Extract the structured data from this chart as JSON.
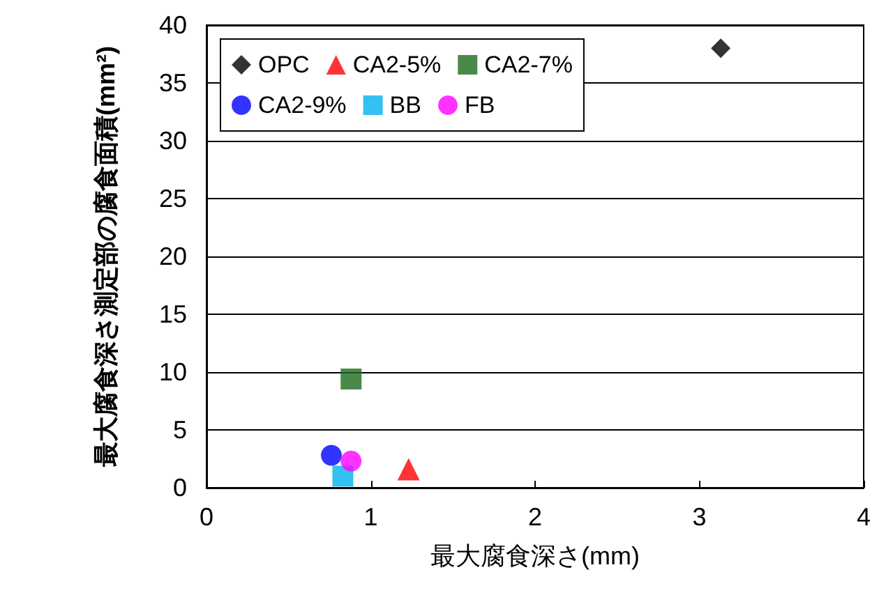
{
  "chart_data": {
    "type": "scatter",
    "xlabel": "最大腐食深さ(mm)",
    "ylabel": "最大腐食深さ測定部の腐食面積(mm²)",
    "series": [
      {
        "name": "OPC",
        "color": "#000000",
        "marker": "diamond",
        "x": [
          3.13
        ],
        "values": [
          38
        ]
      },
      {
        "name": "CA2-5%",
        "color": "#ff0000",
        "marker": "triangle",
        "x": [
          1.23
        ],
        "values": [
          1.6
        ]
      },
      {
        "name": "CA2-7%",
        "color": "#1e6b1e",
        "marker": "square",
        "x": [
          0.88
        ],
        "values": [
          9.4
        ]
      },
      {
        "name": "CA2-9%",
        "color": "#0000ff",
        "marker": "circle",
        "x": [
          0.76
        ],
        "values": [
          2.8
        ]
      },
      {
        "name": "BB",
        "color": "#00b0f0",
        "marker": "square",
        "x": [
          0.83
        ],
        "values": [
          1.0
        ]
      },
      {
        "name": "FB",
        "color": "#ff00ff",
        "marker": "circle",
        "x": [
          0.88
        ],
        "values": [
          2.3
        ]
      }
    ],
    "xlim": [
      0,
      4
    ],
    "xticks": [
      0,
      1,
      2,
      3,
      4
    ],
    "ylim": [
      0,
      40
    ],
    "yticks": [
      0,
      5,
      10,
      15,
      20,
      25,
      30,
      35,
      40
    ],
    "grid": "y",
    "legend": "top left"
  }
}
